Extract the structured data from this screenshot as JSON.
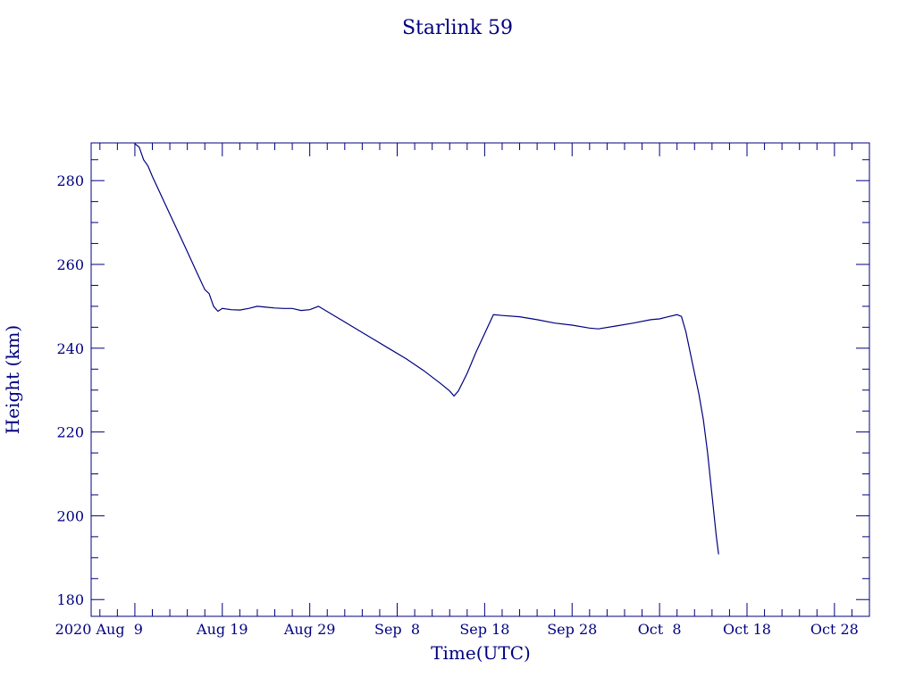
{
  "chart_data": {
    "type": "line",
    "title": "Starlink 59",
    "xlabel": "Time(UTC)",
    "ylabel": "Height (km)",
    "x_tick_labels": [
      "2020 Aug  9",
      "Aug 19",
      "Aug 29",
      "Sep  8",
      "Sep 18",
      "Sep 28",
      "Oct  8",
      "Oct 18",
      "Oct 28"
    ],
    "y_tick_labels": [
      "180",
      "200",
      "220",
      "240",
      "260",
      "280"
    ],
    "xlim": [
      "2020-08-04",
      "2020-11-01"
    ],
    "ylim": [
      176,
      289
    ],
    "grid": false,
    "line_color": "#000080",
    "series": [
      {
        "points": [
          [
            "2020-08-09T00:00",
            288.8
          ],
          [
            "2020-08-09T12:00",
            288.0
          ],
          [
            "2020-08-10T00:00",
            285.0
          ],
          [
            "2020-08-10T12:00",
            283.5
          ],
          [
            "2020-08-11T00:00",
            281.0
          ],
          [
            "2020-08-12T00:00",
            276.5
          ],
          [
            "2020-08-13T00:00",
            272.0
          ],
          [
            "2020-08-14T00:00",
            267.5
          ],
          [
            "2020-08-15T00:00",
            263.0
          ],
          [
            "2020-08-16T00:00",
            258.5
          ],
          [
            "2020-08-17T00:00",
            254.0
          ],
          [
            "2020-08-17T12:00",
            253.0
          ],
          [
            "2020-08-18T00:00",
            250.0
          ],
          [
            "2020-08-18T12:00",
            248.8
          ],
          [
            "2020-08-19T00:00",
            249.5
          ],
          [
            "2020-08-20T00:00",
            249.2
          ],
          [
            "2020-08-21T00:00",
            249.1
          ],
          [
            "2020-08-22T00:00",
            249.5
          ],
          [
            "2020-08-23T00:00",
            250.0
          ],
          [
            "2020-08-24T00:00",
            249.8
          ],
          [
            "2020-08-25T00:00",
            249.6
          ],
          [
            "2020-08-26T00:00",
            249.5
          ],
          [
            "2020-08-27T00:00",
            249.5
          ],
          [
            "2020-08-28T00:00",
            249.0
          ],
          [
            "2020-08-29T00:00",
            249.2
          ],
          [
            "2020-08-30T00:00",
            250.0
          ],
          [
            "2020-09-01T00:00",
            247.5
          ],
          [
            "2020-09-03T00:00",
            245.0
          ],
          [
            "2020-09-05T00:00",
            242.5
          ],
          [
            "2020-09-07T00:00",
            240.0
          ],
          [
            "2020-09-09T00:00",
            237.5
          ],
          [
            "2020-09-11T00:00",
            234.7
          ],
          [
            "2020-09-13T00:00",
            231.5
          ],
          [
            "2020-09-14T00:00",
            229.8
          ],
          [
            "2020-09-14T12:00",
            228.6
          ],
          [
            "2020-09-15T00:00",
            229.8
          ],
          [
            "2020-09-16T00:00",
            234.0
          ],
          [
            "2020-09-17T00:00",
            239.0
          ],
          [
            "2020-09-18T00:00",
            243.5
          ],
          [
            "2020-09-19T00:00",
            248.0
          ],
          [
            "2020-09-20T00:00",
            247.8
          ],
          [
            "2020-09-22T00:00",
            247.5
          ],
          [
            "2020-09-24T00:00",
            246.8
          ],
          [
            "2020-09-26T00:00",
            246.0
          ],
          [
            "2020-09-28T00:00",
            245.5
          ],
          [
            "2020-09-30T00:00",
            244.8
          ],
          [
            "2020-10-01T00:00",
            244.6
          ],
          [
            "2020-10-03T00:00",
            245.3
          ],
          [
            "2020-10-05T00:00",
            246.0
          ],
          [
            "2020-10-07T00:00",
            246.8
          ],
          [
            "2020-10-08T00:00",
            247.0
          ],
          [
            "2020-10-09T00:00",
            247.5
          ],
          [
            "2020-10-10T00:00",
            248.0
          ],
          [
            "2020-10-10T12:00",
            247.6
          ],
          [
            "2020-10-11T00:00",
            244.0
          ],
          [
            "2020-10-11T12:00",
            239.0
          ],
          [
            "2020-10-12T00:00",
            234.0
          ],
          [
            "2020-10-12T12:00",
            229.0
          ],
          [
            "2020-10-13T00:00",
            223.0
          ],
          [
            "2020-10-13T12:00",
            215.0
          ],
          [
            "2020-10-14T00:00",
            205.0
          ],
          [
            "2020-10-14T12:00",
            195.0
          ],
          [
            "2020-10-14T18:00",
            190.8
          ]
        ]
      }
    ]
  }
}
